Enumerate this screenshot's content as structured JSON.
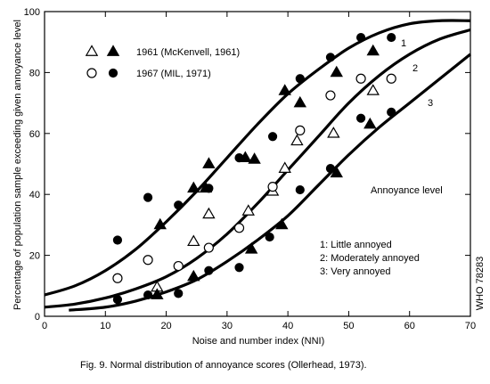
{
  "caption": "Fig. 9. Normal distribution of annoyance scores (Ollerhead, 1973).",
  "side_label": "WHO 78283",
  "chart_data": {
    "type": "scatter",
    "xlabel": "Noise and number index (NNI)",
    "ylabel": "Percentage of population sample exceeding given annoyance level",
    "xlim": [
      0,
      70
    ],
    "ylim": [
      0,
      100
    ],
    "xticks": [
      0,
      10,
      20,
      30,
      40,
      50,
      60,
      70
    ],
    "yticks": [
      0,
      20,
      40,
      60,
      80,
      100
    ],
    "grid": false,
    "legend": [
      {
        "label": "1961 (McKenvell, 1961)",
        "markers": [
          "open-triangle",
          "filled-triangle"
        ]
      },
      {
        "label": "1967 (MIL, 1971)",
        "markers": [
          "open-circle",
          "filled-circle"
        ]
      }
    ],
    "annotation_title": "Annoyance level",
    "levels": [
      {
        "id": "1",
        "label": "1:  Little annoyed"
      },
      {
        "id": "2",
        "label": "2:  Moderately annoyed"
      },
      {
        "id": "3",
        "label": "3:  Very annoyed"
      }
    ],
    "curves": [
      {
        "id": "1",
        "x": [
          0,
          5,
          10,
          15,
          20,
          25,
          30,
          35,
          40,
          45,
          50,
          55,
          60,
          65,
          70
        ],
        "y": [
          7,
          10,
          15,
          22,
          31,
          41,
          52,
          63,
          73,
          81,
          88,
          93,
          96,
          97,
          97
        ]
      },
      {
        "id": "2",
        "x": [
          0,
          5,
          10,
          15,
          20,
          25,
          30,
          35,
          40,
          45,
          50,
          55,
          60,
          65,
          70
        ],
        "y": [
          3,
          4,
          6,
          9,
          13,
          19,
          27,
          37,
          48,
          59,
          70,
          79,
          86,
          91,
          94
        ]
      },
      {
        "id": "3",
        "x": [
          4,
          10,
          15,
          20,
          25,
          30,
          35,
          40,
          45,
          50,
          55,
          60,
          65,
          70
        ],
        "y": [
          2,
          3,
          5,
          8,
          12,
          18,
          25,
          33,
          43,
          53,
          62,
          70,
          78,
          86
        ]
      }
    ],
    "series": [
      {
        "marker": "open-triangle",
        "points": [
          [
            18.5,
            9.5
          ],
          [
            24.5,
            24.5
          ],
          [
            27,
            33.5
          ],
          [
            33.5,
            34.5
          ],
          [
            37.5,
            41
          ],
          [
            39.5,
            48.5
          ],
          [
            41.5,
            57.5
          ],
          [
            47.5,
            60
          ],
          [
            54,
            74
          ]
        ]
      },
      {
        "marker": "filled-triangle",
        "points": [
          [
            18.5,
            7
          ],
          [
            19,
            30
          ],
          [
            24.5,
            13
          ],
          [
            24.5,
            42
          ],
          [
            26.5,
            42
          ],
          [
            27,
            50
          ],
          [
            33,
            52
          ],
          [
            34,
            22
          ],
          [
            34.5,
            51.5
          ],
          [
            39,
            30
          ],
          [
            39.5,
            74
          ],
          [
            42,
            70
          ],
          [
            48,
            47
          ],
          [
            48,
            80
          ],
          [
            53.5,
            63
          ],
          [
            54,
            87
          ]
        ]
      },
      {
        "marker": "open-circle",
        "points": [
          [
            12,
            12.5
          ],
          [
            17,
            18.5
          ],
          [
            22,
            16.5
          ],
          [
            27,
            22.5
          ],
          [
            32,
            29
          ],
          [
            37.5,
            42.5
          ],
          [
            42,
            61
          ],
          [
            47,
            72.5
          ],
          [
            52,
            78
          ],
          [
            57,
            78
          ]
        ]
      },
      {
        "marker": "filled-circle",
        "points": [
          [
            12,
            5.5
          ],
          [
            12,
            25
          ],
          [
            17,
            7
          ],
          [
            17,
            39
          ],
          [
            22,
            7.5
          ],
          [
            22,
            36.5
          ],
          [
            27,
            15
          ],
          [
            27,
            42
          ],
          [
            32,
            16
          ],
          [
            32,
            52
          ],
          [
            37,
            26
          ],
          [
            37.5,
            59
          ],
          [
            42,
            41.5
          ],
          [
            42,
            78
          ],
          [
            47,
            48.5
          ],
          [
            47,
            85
          ],
          [
            52,
            65
          ],
          [
            52,
            91.5
          ],
          [
            57,
            67
          ],
          [
            57,
            91.5
          ]
        ]
      }
    ]
  }
}
